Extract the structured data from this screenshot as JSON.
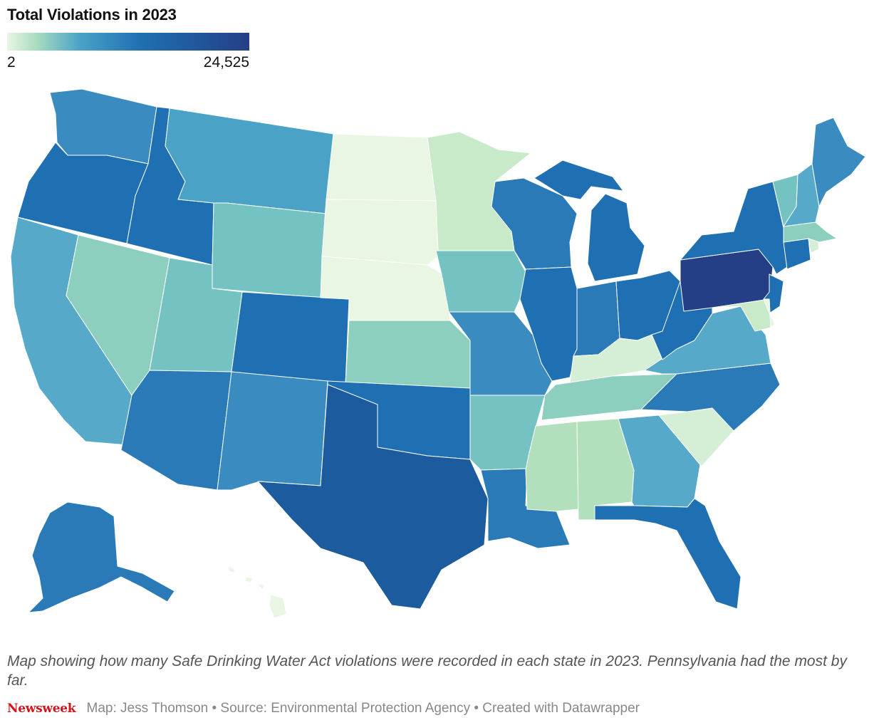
{
  "title": "Total Violations in 2023",
  "legend": {
    "min_label": "2",
    "max_label": "24,525",
    "min_color": "#e8f6e3",
    "max_color": "#243f86"
  },
  "caption": "Map showing how many Safe Drinking Water Act violations were recorded in each state in 2023. Pennsylvania had the most by far.",
  "footer": {
    "brand": "Newsweek",
    "credits": "Map: Jess Thomson • Source: Environmental Protection Agency • Created with Datawrapper"
  },
  "colors": {
    "c1": "#e8f6e3",
    "c2": "#d5efd6",
    "c3": "#c8eac8",
    "c4": "#b2e0bc",
    "c5": "#8ccfbf",
    "c6": "#74c2c2",
    "c7": "#56a9c9",
    "c8": "#4aa3c7",
    "c9": "#3a8cc0",
    "c10": "#2a7ab8",
    "c11": "#1f70b2",
    "c12": "#1c5c9e",
    "c13": "#243f86"
  },
  "states": [
    {
      "name": "Washington",
      "color_key": "c9"
    },
    {
      "name": "Oregon",
      "color_key": "c11"
    },
    {
      "name": "California",
      "color_key": "c7"
    },
    {
      "name": "Nevada",
      "color_key": "c5"
    },
    {
      "name": "Idaho",
      "color_key": "c11"
    },
    {
      "name": "Montana",
      "color_key": "c8"
    },
    {
      "name": "Wyoming",
      "color_key": "c6"
    },
    {
      "name": "Utah",
      "color_key": "c6"
    },
    {
      "name": "Arizona",
      "color_key": "c10"
    },
    {
      "name": "Colorado",
      "color_key": "c11"
    },
    {
      "name": "New Mexico",
      "color_key": "c9"
    },
    {
      "name": "North Dakota",
      "color_key": "c1"
    },
    {
      "name": "South Dakota",
      "color_key": "c1"
    },
    {
      "name": "Nebraska",
      "color_key": "c1"
    },
    {
      "name": "Kansas",
      "color_key": "c5"
    },
    {
      "name": "Oklahoma",
      "color_key": "c11"
    },
    {
      "name": "Texas",
      "color_key": "c12"
    },
    {
      "name": "Minnesota",
      "color_key": "c3"
    },
    {
      "name": "Iowa",
      "color_key": "c6"
    },
    {
      "name": "Missouri",
      "color_key": "c9"
    },
    {
      "name": "Arkansas",
      "color_key": "c6"
    },
    {
      "name": "Louisiana",
      "color_key": "c10"
    },
    {
      "name": "Wisconsin",
      "color_key": "c10"
    },
    {
      "name": "Illinois",
      "color_key": "c11"
    },
    {
      "name": "Michigan",
      "color_key": "c11"
    },
    {
      "name": "Indiana",
      "color_key": "c10"
    },
    {
      "name": "Ohio",
      "color_key": "c11"
    },
    {
      "name": "Kentucky",
      "color_key": "c2"
    },
    {
      "name": "Tennessee",
      "color_key": "c5"
    },
    {
      "name": "Mississippi",
      "color_key": "c4"
    },
    {
      "name": "Alabama",
      "color_key": "c4"
    },
    {
      "name": "Georgia",
      "color_key": "c7"
    },
    {
      "name": "Florida",
      "color_key": "c11"
    },
    {
      "name": "South Carolina",
      "color_key": "c2"
    },
    {
      "name": "North Carolina",
      "color_key": "c10"
    },
    {
      "name": "Virginia",
      "color_key": "c7"
    },
    {
      "name": "West Virginia",
      "color_key": "c11"
    },
    {
      "name": "Pennsylvania",
      "color_key": "c13"
    },
    {
      "name": "New York",
      "color_key": "c11"
    },
    {
      "name": "New Jersey",
      "color_key": "c11"
    },
    {
      "name": "Maryland",
      "color_key": "c3"
    },
    {
      "name": "Delaware",
      "color_key": "c1"
    },
    {
      "name": "Connecticut",
      "color_key": "c11"
    },
    {
      "name": "Rhode Island",
      "color_key": "c2"
    },
    {
      "name": "Massachusetts",
      "color_key": "c5"
    },
    {
      "name": "Vermont",
      "color_key": "c6"
    },
    {
      "name": "New Hampshire",
      "color_key": "c7"
    },
    {
      "name": "Maine",
      "color_key": "c9"
    },
    {
      "name": "Alaska",
      "color_key": "c10"
    },
    {
      "name": "Hawaii",
      "color_key": "c1"
    }
  ]
}
